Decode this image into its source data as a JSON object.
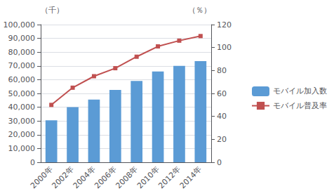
{
  "chart_data": {
    "type": "bar",
    "categories": [
      "2000年",
      "2002年",
      "2004年",
      "2006年",
      "2008年",
      "2010年",
      "2012年",
      "2014年"
    ],
    "series": [
      {
        "name": "モバイル加入数",
        "type": "bar",
        "color": "#5B9BD5",
        "values": [
          30500,
          40000,
          45500,
          52500,
          59000,
          66000,
          70000,
          73500
        ]
      },
      {
        "name": "モバイル普及率",
        "type": "line",
        "color": "#C05050",
        "marker": "square",
        "axis": "y2",
        "values": [
          50,
          65,
          75,
          82,
          92,
          101,
          106,
          110
        ]
      }
    ],
    "ylabel": "（千）",
    "y2label": "（％）",
    "ylim": [
      0,
      100000
    ],
    "yticks": [
      0,
      {
        "value": 10000,
        "label": "10,000"
      },
      {
        "value": 20000,
        "label": "20,000"
      },
      {
        "value": 30000,
        "label": "30,000"
      },
      {
        "value": 40000,
        "label": "40,000"
      },
      {
        "value": 50000,
        "label": "50,000"
      },
      {
        "value": 60000,
        "label": "60,000"
      },
      {
        "value": 70000,
        "label": "70,000"
      },
      {
        "value": 80000,
        "label": "80,000"
      },
      {
        "value": 90000,
        "label": "90,000"
      },
      {
        "value": 100000,
        "label": "100,000"
      }
    ],
    "y2lim": [
      0,
      120
    ],
    "y2ticks": [
      0,
      20,
      40,
      60,
      80,
      100,
      120
    ],
    "grid": true,
    "legend": "right"
  }
}
